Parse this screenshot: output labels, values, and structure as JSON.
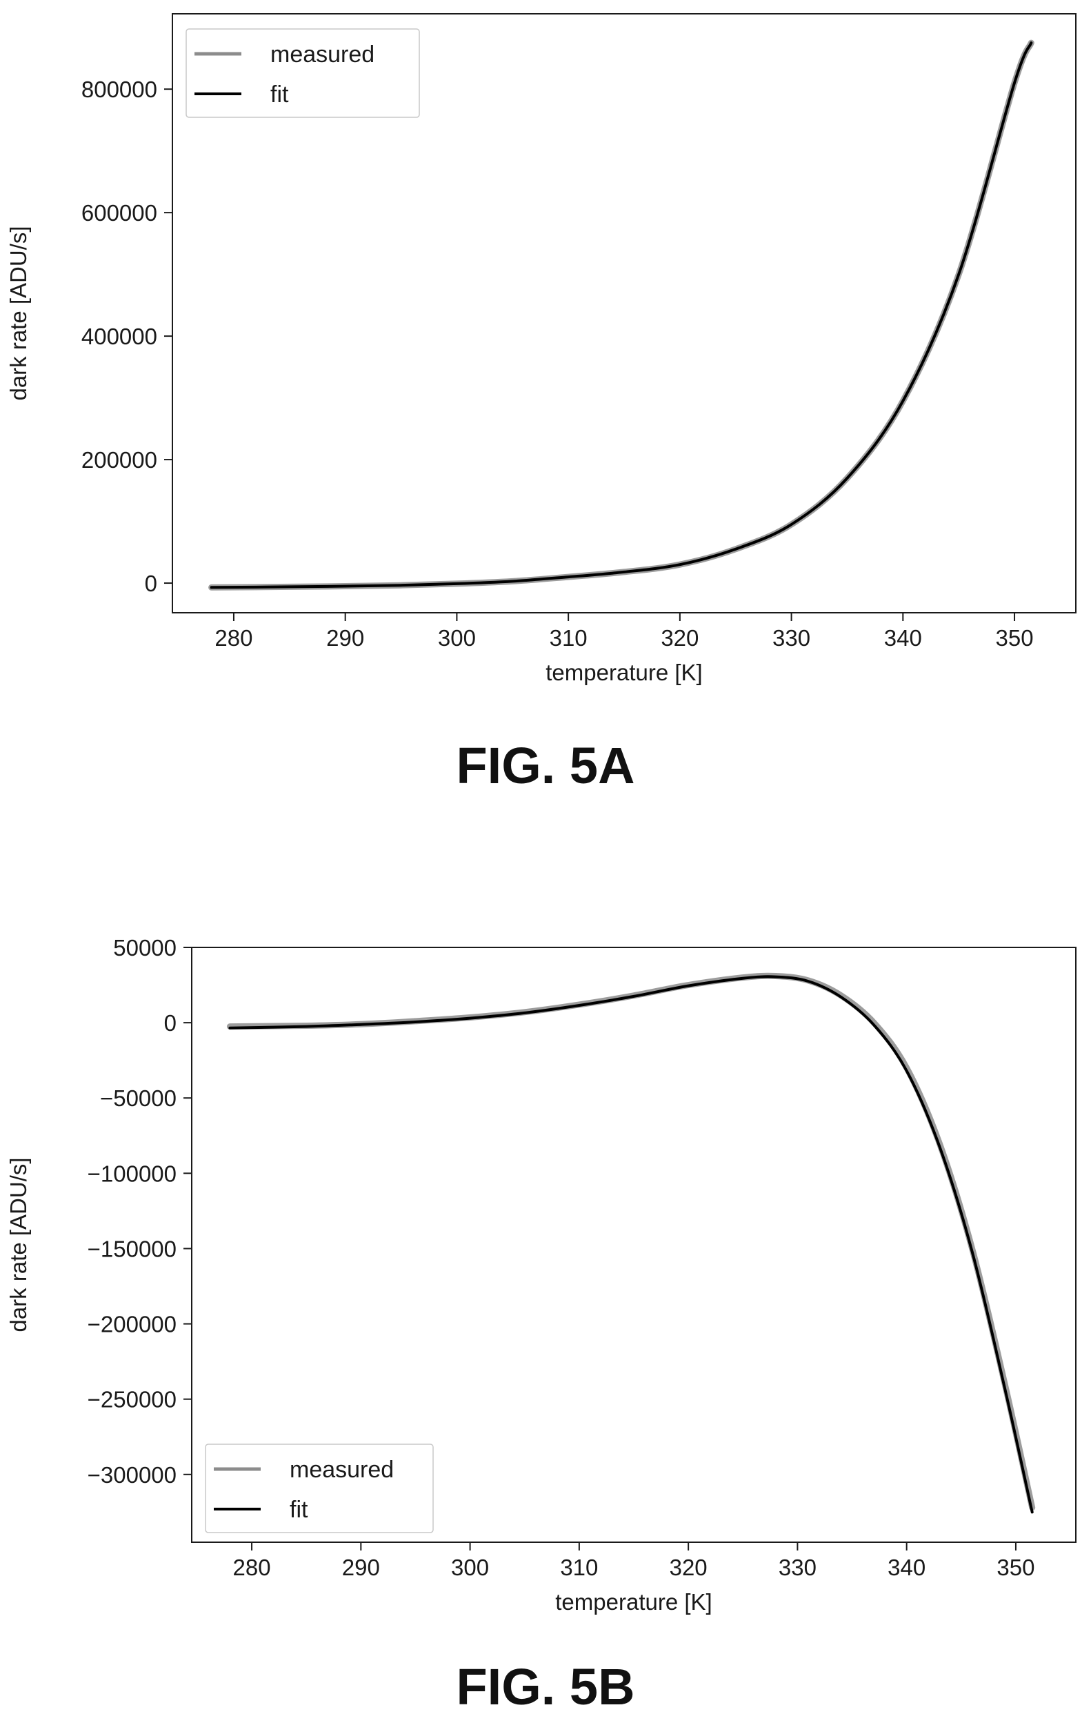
{
  "chart_data": [
    {
      "type": "line",
      "figure_label": "FIG. 5A",
      "xlabel": "temperature [K]",
      "ylabel": "dark rate [ADU/s]",
      "xlim": [
        274.5,
        355.5
      ],
      "ylim": [
        -48000,
        922000
      ],
      "xticks": [
        280,
        290,
        300,
        310,
        320,
        330,
        340,
        350
      ],
      "yticks": [
        0,
        200000,
        400000,
        600000,
        800000
      ],
      "ytick_labels": [
        "0",
        "200000",
        "400000",
        "600000",
        "800000"
      ],
      "grid": false,
      "legend_position": "top-left",
      "series": [
        {
          "name": "measured",
          "color": "#8c8c8c",
          "x": [
            278,
            285,
            290,
            295,
            300,
            305,
            310,
            315,
            320,
            325,
            330,
            335,
            340,
            345,
            350,
            351.5
          ],
          "y": [
            -7000,
            -6000,
            -5000,
            -3500,
            -1000,
            3000,
            10000,
            18000,
            30000,
            55000,
            95000,
            170000,
            295000,
            500000,
            810000,
            875000
          ]
        },
        {
          "name": "fit",
          "color": "#000000",
          "x": [
            278,
            285,
            290,
            295,
            300,
            305,
            310,
            315,
            320,
            325,
            330,
            335,
            340,
            345,
            350,
            351.5
          ],
          "y": [
            -7000,
            -6000,
            -5000,
            -3500,
            -1000,
            3000,
            10000,
            18000,
            30000,
            55000,
            95000,
            170000,
            295000,
            500000,
            810000,
            875000
          ]
        }
      ]
    },
    {
      "type": "line",
      "figure_label": "FIG. 5B",
      "xlabel": "temperature [K]",
      "ylabel": "dark rate [ADU/s]",
      "xlim": [
        274.5,
        355.5
      ],
      "ylim": [
        -345000,
        50000
      ],
      "xticks": [
        280,
        290,
        300,
        310,
        320,
        330,
        340,
        350
      ],
      "yticks": [
        50000,
        0,
        -50000,
        -100000,
        -150000,
        -200000,
        -250000,
        -300000
      ],
      "ytick_labels": [
        "50000",
        "0",
        "−50000",
        "−100000",
        "−150000",
        "−200000",
        "−250000",
        "−300000"
      ],
      "grid": false,
      "legend_position": "bottom-left",
      "series": [
        {
          "name": "measured",
          "color": "#8c8c8c",
          "x": [
            278,
            285,
            290,
            295,
            300,
            305,
            310,
            315,
            320,
            325,
            328,
            331,
            334,
            337,
            340,
            343,
            346,
            349,
            351.5
          ],
          "y": [
            -2500,
            -2000,
            -1000,
            1000,
            3500,
            7000,
            12000,
            18000,
            25000,
            30000,
            31000,
            28000,
            18000,
            0,
            -30000,
            -80000,
            -150000,
            -240000,
            -322000
          ]
        },
        {
          "name": "fit",
          "color": "#000000",
          "x": [
            278,
            285,
            290,
            295,
            300,
            305,
            310,
            315,
            320,
            325,
            328,
            331,
            334,
            337,
            340,
            343,
            346,
            349,
            351.5
          ],
          "y": [
            -3500,
            -2500,
            -1200,
            500,
            3000,
            6500,
            11500,
            17500,
            24500,
            29500,
            30500,
            27500,
            17000,
            -1500,
            -32000,
            -82000,
            -152000,
            -243000,
            -325000
          ]
        }
      ]
    }
  ]
}
